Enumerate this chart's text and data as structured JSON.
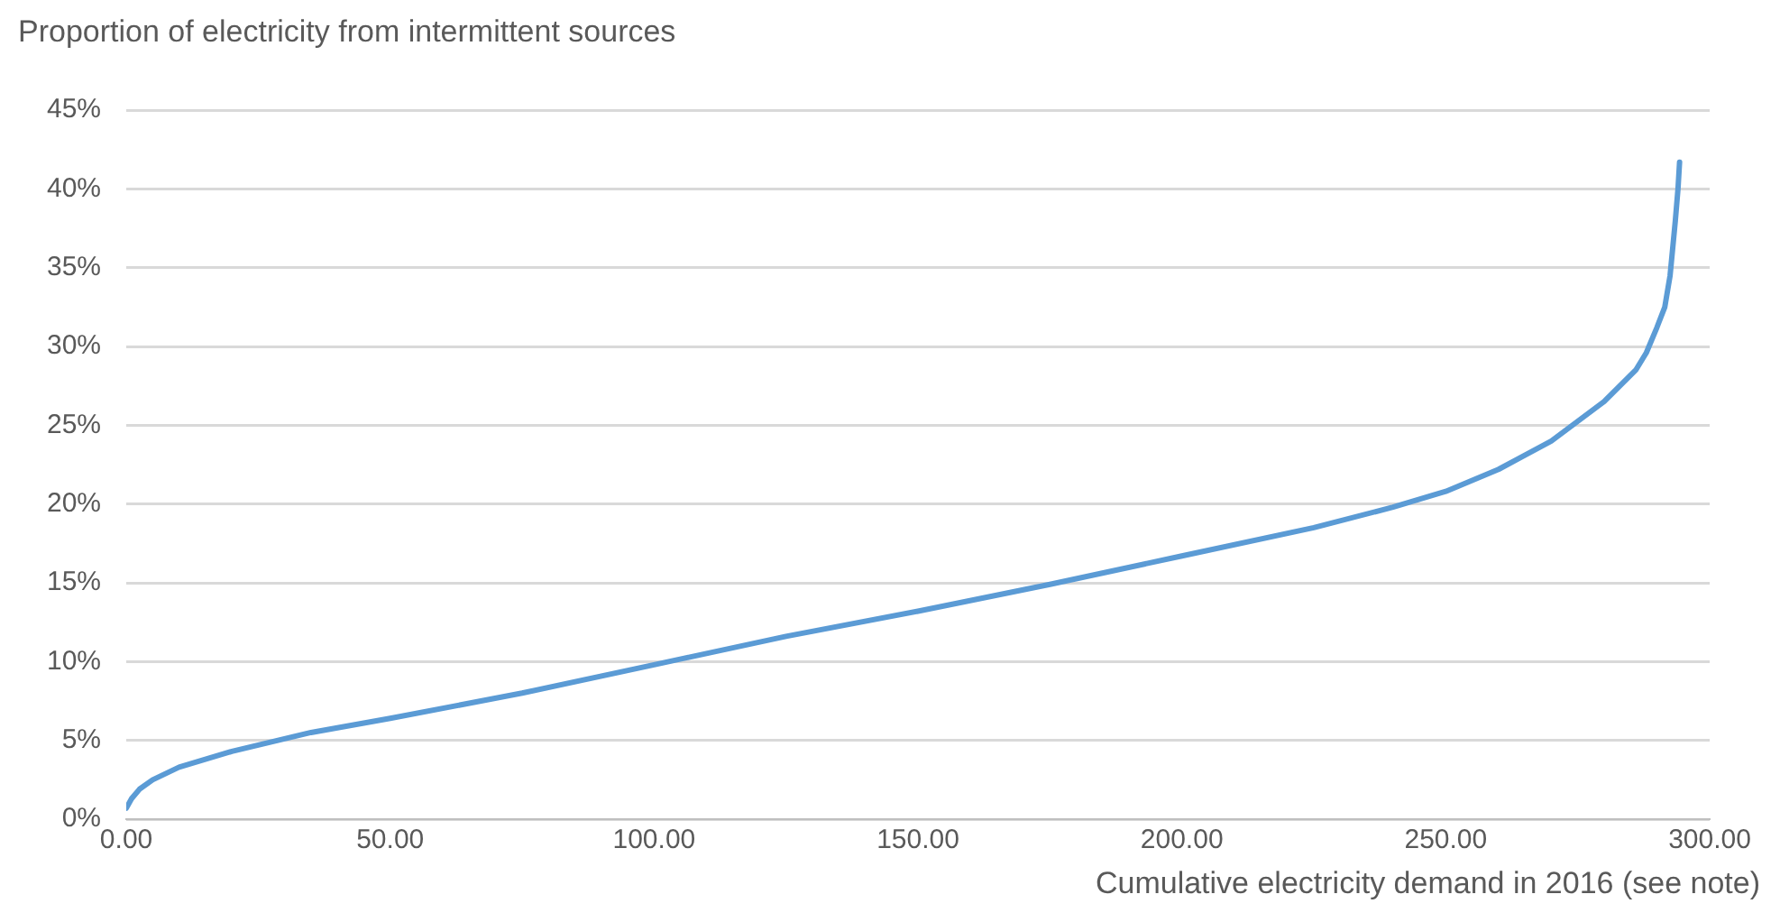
{
  "chart_data": {
    "type": "line",
    "ylabel": "Proportion of electricity from intermittent sources",
    "xlabel": "Cumulative electricity demand in 2016 (see note)",
    "x": [
      0,
      1,
      2.5,
      5,
      10,
      20,
      35,
      50,
      75,
      100,
      125,
      150,
      175,
      200,
      225,
      240,
      250,
      260,
      270,
      280,
      286,
      288,
      290,
      291.5,
      292.5,
      293.5,
      294,
      294.3
    ],
    "series": [
      {
        "color": "#5b9bd5",
        "values": [
          0.7,
          1.3,
          1.9,
          2.5,
          3.3,
          4.3,
          5.5,
          6.4,
          8,
          9.8,
          11.6,
          13.2,
          14.9,
          16.7,
          18.5,
          19.8,
          20.8,
          22.2,
          24,
          26.5,
          28.5,
          29.6,
          31.2,
          32.5,
          34.5,
          38,
          40,
          41.7
        ]
      }
    ],
    "xlim": [
      0,
      300
    ],
    "ylim": [
      0,
      45
    ],
    "xticks": [
      {
        "value": 0,
        "label": "0.00"
      },
      {
        "value": 50,
        "label": "50.00"
      },
      {
        "value": 100,
        "label": "100.00"
      },
      {
        "value": 150,
        "label": "150.00"
      },
      {
        "value": 200,
        "label": "200.00"
      },
      {
        "value": 250,
        "label": "250.00"
      },
      {
        "value": 300,
        "label": "300.00"
      }
    ],
    "yticks": [
      {
        "value": 0,
        "label": "0%"
      },
      {
        "value": 5,
        "label": "5%"
      },
      {
        "value": 10,
        "label": "10%"
      },
      {
        "value": 15,
        "label": "15%"
      },
      {
        "value": 20,
        "label": "20%"
      },
      {
        "value": 25,
        "label": "25%"
      },
      {
        "value": 30,
        "label": "30%"
      },
      {
        "value": 35,
        "label": "35%"
      },
      {
        "value": 40,
        "label": "40%"
      },
      {
        "value": 45,
        "label": "45%"
      }
    ],
    "grid": "y",
    "legend": false,
    "marker": "none",
    "line_style": "solid"
  }
}
